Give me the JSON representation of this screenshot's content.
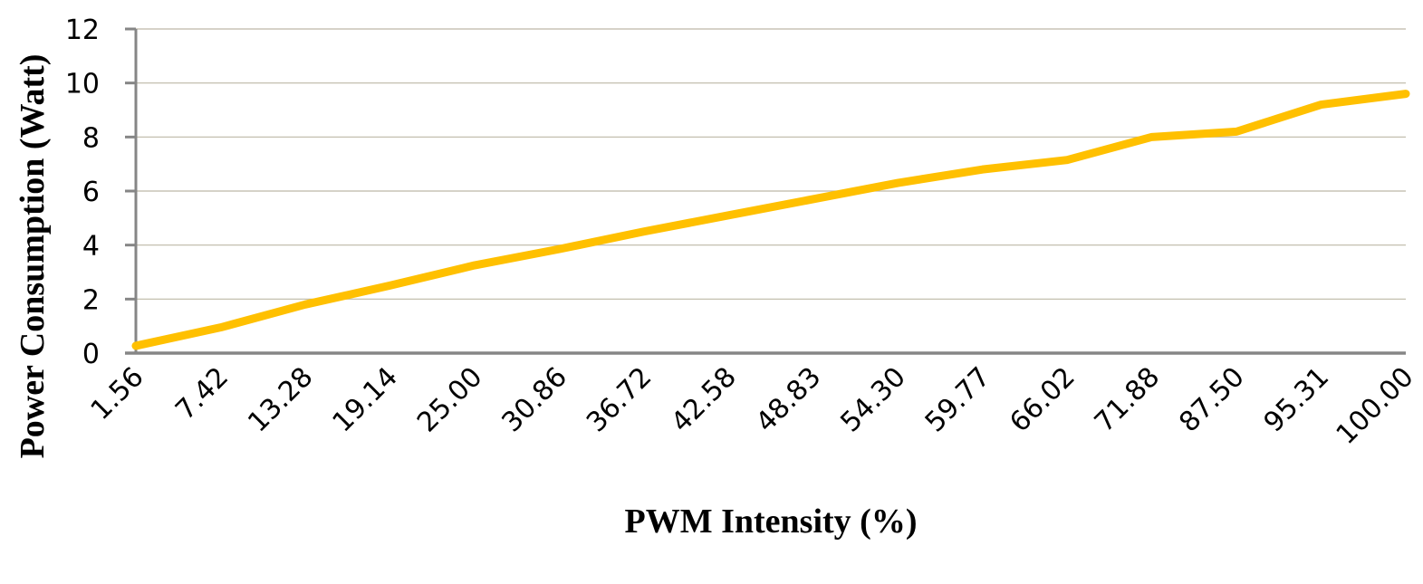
{
  "chart_data": {
    "type": "line",
    "title": "",
    "xlabel": "PWM Intensity (%)",
    "ylabel": "Power Consumption (Watt)",
    "categories": [
      "1.56",
      "7.42",
      "13.28",
      "19.14",
      "25.00",
      "30.86",
      "36.72",
      "42.58",
      "48.83",
      "54.30",
      "59.77",
      "66.02",
      "71.88",
      "87.50",
      "95.31",
      "100.00"
    ],
    "series": [
      {
        "name": "Power Consumption",
        "color": "#FFC000",
        "values": [
          0.27,
          0.95,
          1.8,
          2.5,
          3.25,
          3.85,
          4.5,
          5.1,
          5.7,
          6.3,
          6.8,
          7.15,
          8.0,
          8.2,
          9.2,
          9.6
        ]
      }
    ],
    "ylim": [
      0,
      12
    ],
    "yticks": [
      0,
      2,
      4,
      6,
      8,
      10,
      12
    ],
    "grid": {
      "horizontal": true,
      "vertical": false,
      "color": "#BDB8A6"
    },
    "axis_color": "#868686",
    "legend": null
  }
}
